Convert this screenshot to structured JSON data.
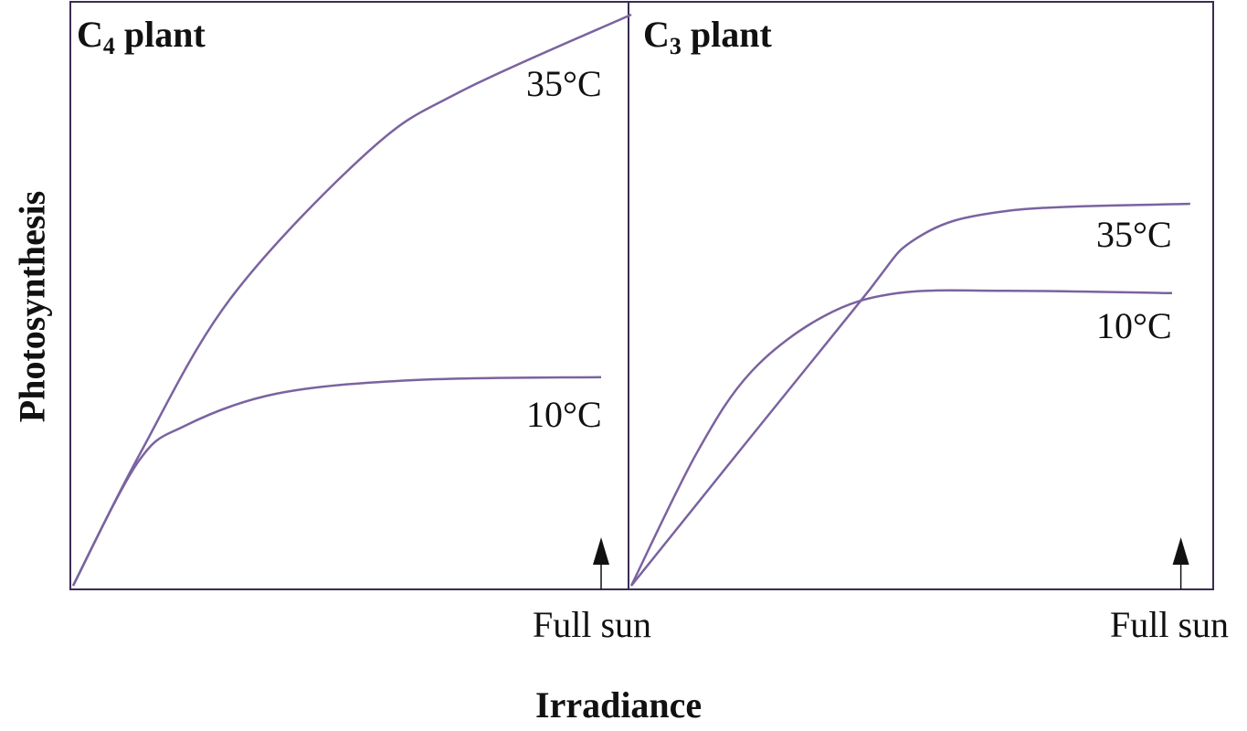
{
  "chart_data": [
    {
      "type": "line",
      "title": {
        "main": "C",
        "sub": "4",
        "rest": " plant"
      },
      "xlabel": "Irradiance",
      "ylabel": "Photosynthesis",
      "xlim": [
        0,
        1
      ],
      "ylim": [
        0,
        1
      ],
      "x_marker": {
        "label": "Full sun",
        "x": 0.946
      },
      "series": [
        {
          "name": "35°C",
          "x": [
            0,
            0.12,
            0.283,
            0.529,
            0.692,
            1.0
          ],
          "y": [
            0,
            0.225,
            0.49,
            0.739,
            0.84,
            0.972
          ]
        },
        {
          "name": "10°C",
          "x": [
            0,
            0.116,
            0.2,
            0.365,
            0.61,
            0.946
          ],
          "y": [
            0,
            0.21,
            0.272,
            0.327,
            0.35,
            0.355
          ]
        }
      ]
    },
    {
      "type": "line",
      "title": {
        "main": "C",
        "sub": "3",
        "rest": " plant"
      },
      "xlabel": "Irradiance",
      "ylabel": "Photosynthesis",
      "xlim": [
        0,
        1
      ],
      "ylim": [
        0,
        1
      ],
      "x_marker": {
        "label": "Full sun",
        "x": 0.94
      },
      "series": [
        {
          "name": "35°C",
          "x": [
            0,
            0.378,
            0.4875,
            0.644,
            0.956
          ],
          "y": [
            0,
            0.467,
            0.591,
            0.638,
            0.65
          ]
        },
        {
          "name": "10°C",
          "x": [
            0,
            0.112,
            0.206,
            0.33,
            0.456,
            0.644,
            0.925
          ],
          "y": [
            0,
            0.226,
            0.365,
            0.459,
            0.498,
            0.502,
            0.498
          ]
        }
      ]
    }
  ],
  "colors": {
    "curve": "#7a63a0",
    "frame": "#3b2b52",
    "arrow": "#111111"
  }
}
